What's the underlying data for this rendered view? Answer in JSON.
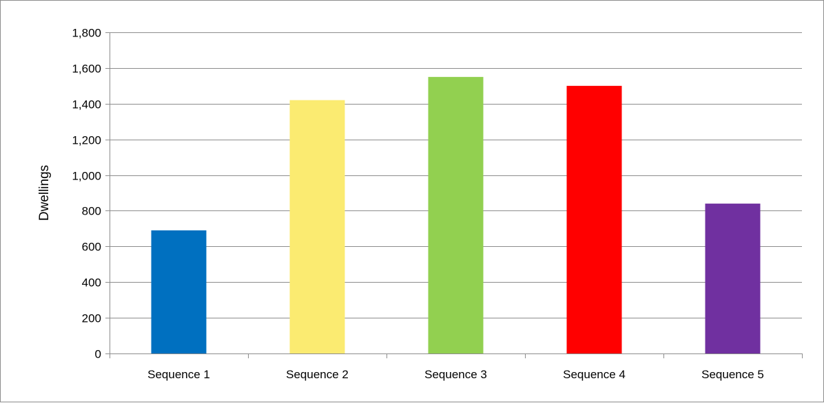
{
  "chart_data": {
    "type": "bar",
    "title": "",
    "xlabel": "",
    "ylabel": "Dwellings",
    "categories": [
      "Sequence 1",
      "Sequence 2",
      "Sequence 3",
      "Sequence 4",
      "Sequence 5"
    ],
    "values": [
      690,
      1420,
      1550,
      1500,
      840
    ],
    "colors": [
      "#0070c0",
      "#fbeb71",
      "#92d050",
      "#ff0000",
      "#7030a0"
    ],
    "ylim": [
      0,
      1800
    ],
    "yticks": [
      "0",
      "200",
      "400",
      "600",
      "800",
      "1,000",
      "1,200",
      "1,400",
      "1,600",
      "1,800"
    ],
    "grid": true,
    "legend": "none"
  }
}
